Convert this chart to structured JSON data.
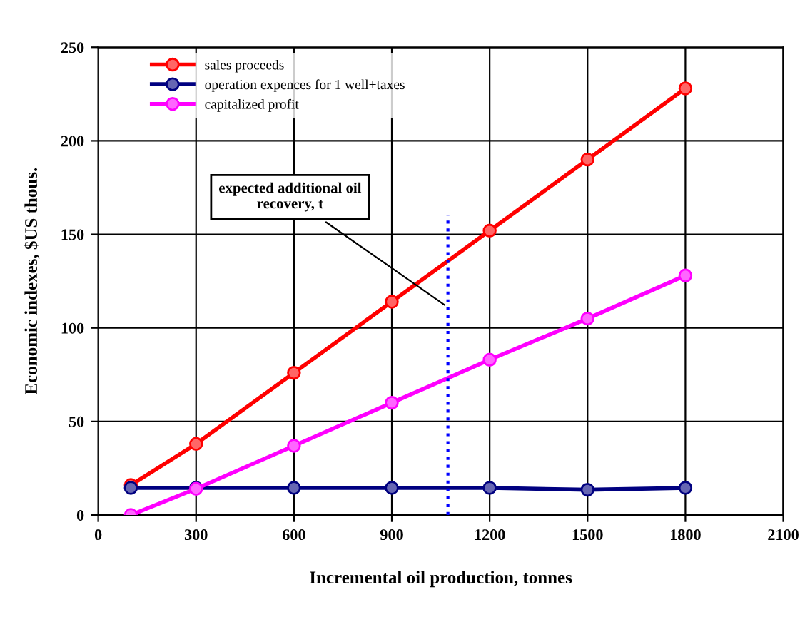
{
  "chart_data": {
    "type": "line",
    "xlabel": "Incremental oil production, tonnes",
    "ylabel": "Economic indexes, $US thous.",
    "x": [
      100,
      300,
      600,
      900,
      1200,
      1500,
      1800
    ],
    "series": [
      {
        "name": "sales proceeds",
        "color": "#ff0000",
        "values": [
          16,
          38,
          76,
          114,
          152,
          190,
          228
        ]
      },
      {
        "name": "operation expences for 1 well+taxes",
        "color": "#000080",
        "values": [
          14.5,
          14.5,
          14.5,
          14.5,
          14.5,
          13.5,
          14.5
        ]
      },
      {
        "name": "capitalized profit",
        "color": "#ff00ff",
        "values": [
          0,
          14,
          37,
          60,
          83,
          105,
          128
        ]
      },
      {
        "color": "#0000ff",
        "x": [
          1072,
          1072
        ],
        "values": [
          0,
          160
        ],
        "marker": "none",
        "line_style": "dotted"
      }
    ],
    "annotations": [
      {
        "text": "expected additional oil\nrecovery, t",
        "x": 1072,
        "y": 111
      }
    ],
    "xlim": [
      0,
      2100
    ],
    "xticks": [
      0,
      300,
      600,
      900,
      1200,
      1500,
      1800,
      2100
    ],
    "ylim": [
      0,
      250
    ],
    "yticks": [
      0,
      50,
      100,
      150,
      200,
      250
    ],
    "grid": true,
    "legend": "top left",
    "marker": "circle",
    "line_style": "solid"
  }
}
